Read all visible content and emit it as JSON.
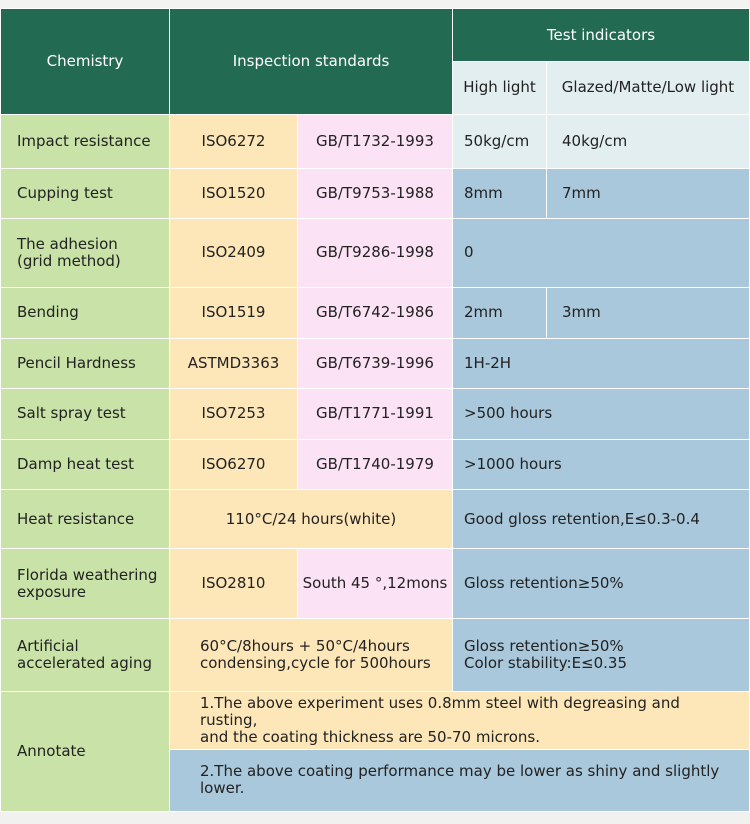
{
  "header": {
    "chemistry": "Chemistry",
    "inspection": "Inspection standards",
    "indicators": "Test indicators",
    "high_light": "High light",
    "glazed": "Glazed/Matte/Low light"
  },
  "rows": {
    "r0": {
      "label": "Impact resistance",
      "iso": "ISO6272",
      "gb": "GB/T1732-1993",
      "high": "50kg/cm",
      "glazed": "40kg/cm"
    },
    "r1": {
      "label": "Cupping test",
      "iso": "ISO1520",
      "gb": "GB/T9753-1988",
      "high": "8mm",
      "glazed": "7mm"
    },
    "r2": {
      "label_line1": "The adhesion",
      "label_line2": "(grid method)",
      "iso": "ISO2409",
      "gb": "GB/T9286-1998",
      "result": "0"
    },
    "r3": {
      "label": "Bending",
      "iso": "ISO1519",
      "gb": "GB/T6742-1986",
      "high": "2mm",
      "glazed": "3mm"
    },
    "r4": {
      "label": "Pencil Hardness",
      "iso": "ASTMD3363",
      "gb": "GB/T6739-1996",
      "result": "1H-2H"
    },
    "r5": {
      "label": "Salt spray test",
      "iso": "ISO7253",
      "gb": "GB/T1771-1991",
      "result": ">500 hours"
    },
    "r6": {
      "label": "Damp heat test",
      "iso": "ISO6270",
      "gb": "GB/T1740-1979",
      "result": ">1000 hours"
    },
    "r7": {
      "label": "Heat resistance",
      "standard": "110°C/24 hours(white)",
      "result": "Good gloss retention,E≤0.3-0.4"
    },
    "r8": {
      "label_line1": "Florida weathering",
      "label_line2": "exposure",
      "iso": "ISO2810",
      "gb": "South 45 °,12mons",
      "result": "Gloss retention≥50%"
    },
    "r9": {
      "label_line1": "Artificial",
      "label_line2": "accelerated aging",
      "standard_line1": "60°C/8hours + 50°C/4hours",
      "standard_line2": "condensing,cycle for 500hours",
      "result_line1": "Gloss retention≥50%",
      "result_line2": "Color stability:E≤0.35"
    }
  },
  "annotate": {
    "label": "Annotate",
    "note1_line1": "1.The above experiment uses 0.8mm steel with degreasing and rusting,",
    "note1_line2": "and the coating thickness are 50-70 microns.",
    "note2_line1": "2.The above coating performance may be lower as shiny and slightly",
    "note2_line2": "lower."
  },
  "colors": {
    "header_green": "#226a52",
    "label_green": "#c8e2a7",
    "standard_yellow": "#fde7b9",
    "standard_pink": "#fbe3f5",
    "result_blue": "#a9c8db",
    "result_light": "#e3eef0"
  }
}
